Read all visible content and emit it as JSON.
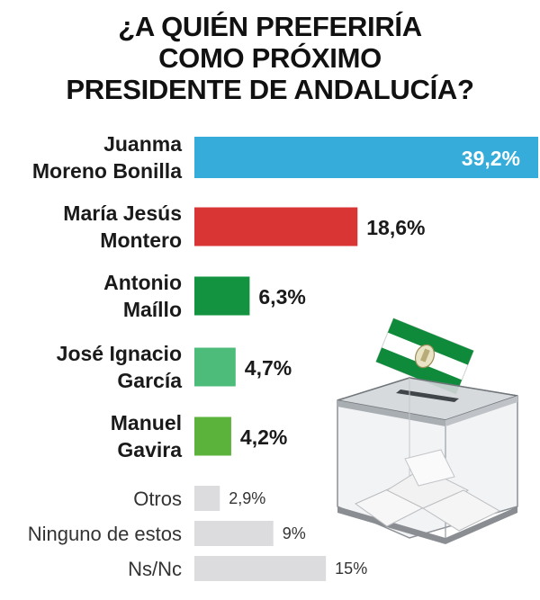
{
  "title": "¿A QUIÉN PREFERIRÍA\nCOMO PRÓXIMO\nPRESIDENTE DE ANDALUCÍA?",
  "chart_data": {
    "type": "bar",
    "orientation": "horizontal",
    "title": "¿A QUIÉN PREFERIRÍA COMO PRÓXIMO PRESIDENTE DE ANDALUCÍA?",
    "xlim": [
      0,
      39.2
    ],
    "grid": false,
    "legend": "none",
    "categories": [
      "Juanma Moreno Bonilla",
      "María Jesús Montero",
      "Antonio Maíllo",
      "José Ignacio García",
      "Manuel Gavira",
      "Otros",
      "Ninguno de estos",
      "Ns/Nc"
    ],
    "label_lines": [
      [
        "Juanma",
        "Moreno Bonilla"
      ],
      [
        "María Jesús",
        "Montero"
      ],
      [
        "Antonio",
        "Maíllo"
      ],
      [
        "José Ignacio",
        "García"
      ],
      [
        "Manuel",
        "Gavira"
      ],
      [
        "Otros"
      ],
      [
        "Ninguno de estos"
      ],
      [
        "Ns/Nc"
      ]
    ],
    "values": [
      39.2,
      18.6,
      6.3,
      4.7,
      4.2,
      2.9,
      9,
      15
    ],
    "value_labels": [
      "39,2%",
      "18,6%",
      "6,3%",
      "4,7%",
      "4,2%",
      "2,9%",
      "9%",
      "15%"
    ],
    "colors": [
      "#35acd9",
      "#d93535",
      "#13933f",
      "#4dbb7a",
      "#5cb33b",
      "#dcdcdf",
      "#dcdcdf",
      "#dcdcdf"
    ]
  },
  "illustration": {
    "ballot_box_icon": "ballot-box-with-andalusia-flag",
    "flag_colors": [
      "#0f8a3a",
      "#ffffff"
    ]
  }
}
